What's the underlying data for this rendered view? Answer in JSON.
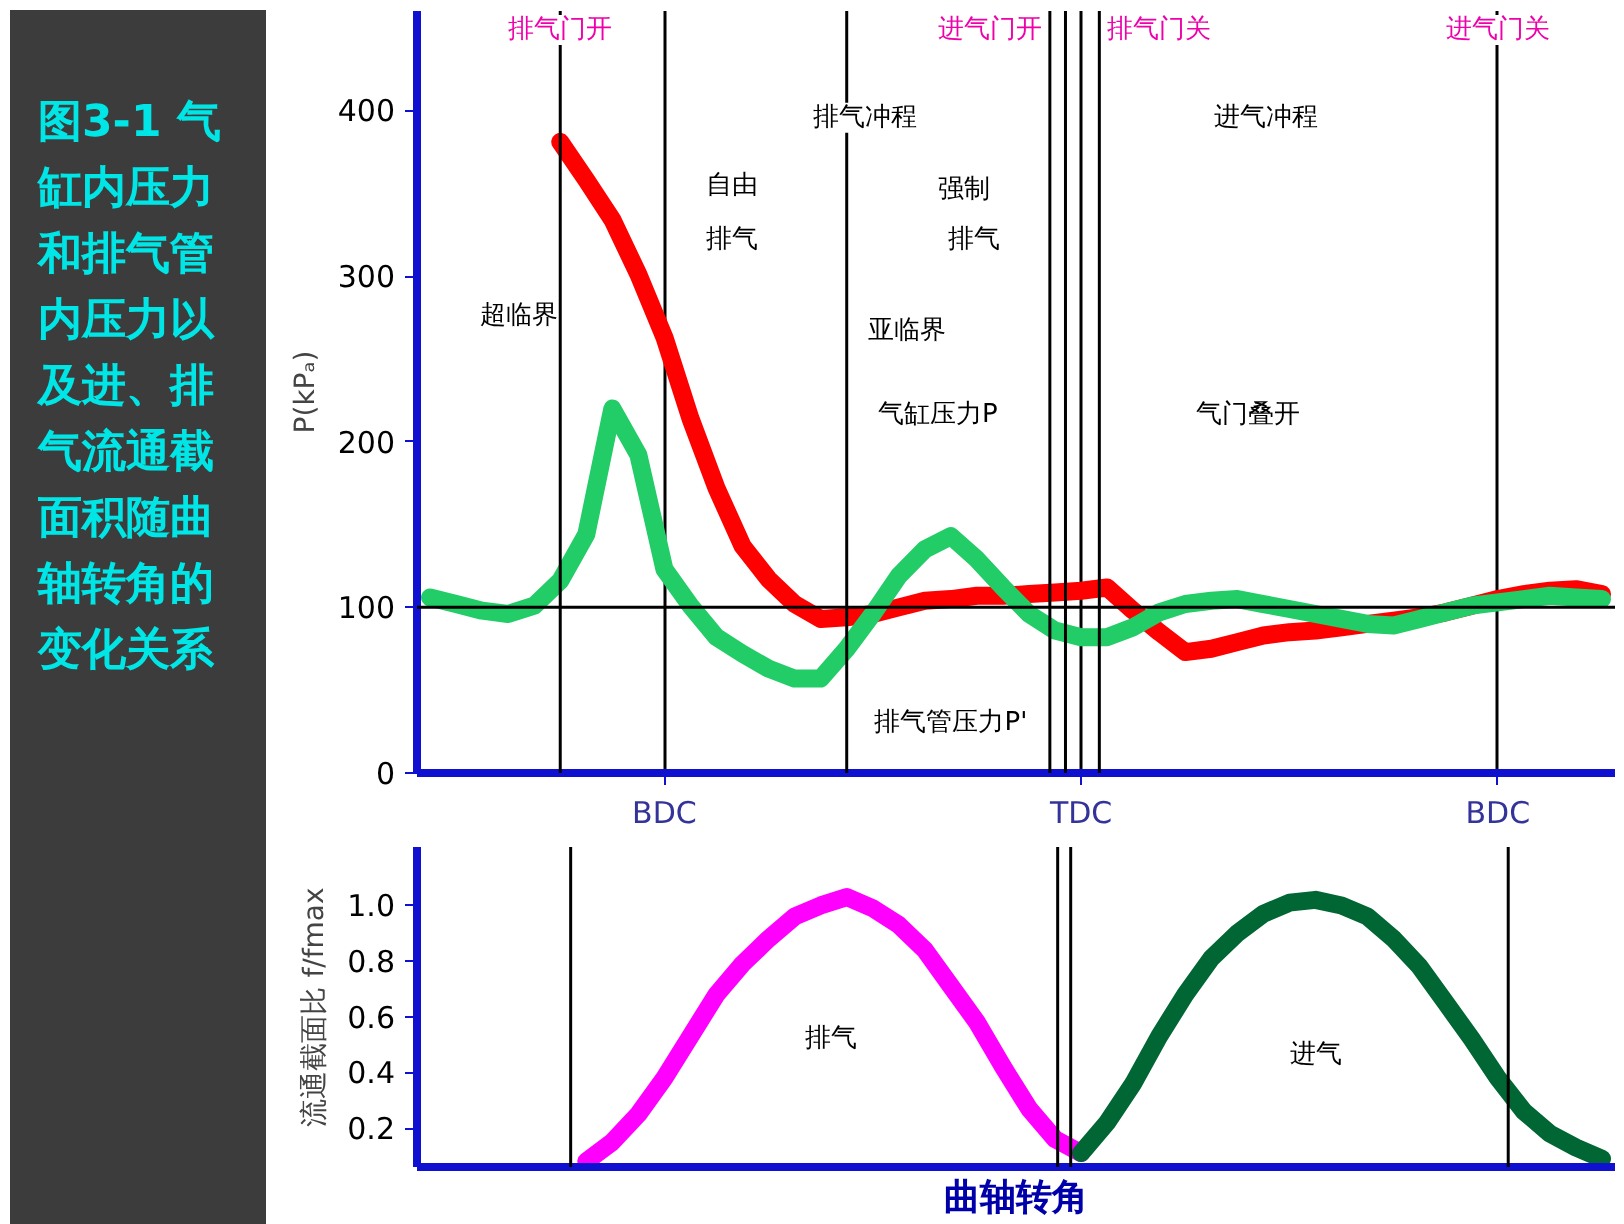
{
  "chart_data": [
    {
      "type": "line",
      "title": "图3-1 气缸内压力和排气管内压力以及进、排气流通截面积随曲轴转角的变化关系",
      "ylabel": "P(kPₐ)",
      "categories": [
        null,
        null,
        null,
        null,
        null,
        null,
        null,
        null,
        null,
        "BDC",
        null,
        null,
        null,
        null,
        null,
        null,
        null,
        null,
        null,
        null,
        null,
        null,
        null,
        null,
        null,
        "TDC",
        null,
        null,
        null,
        null,
        null,
        null,
        null,
        null,
        null,
        null,
        null,
        null,
        null,
        null,
        null,
        "BDC",
        null,
        null,
        null,
        null
      ],
      "ylim": [
        0,
        460
      ],
      "yticks": [
        0,
        100,
        200,
        300,
        400
      ],
      "grid": "x",
      "series": [
        {
          "color": "#ff0000",
          "values": [
            null,
            null,
            null,
            null,
            null,
            381,
            358,
            334,
            301,
            263,
            214,
            172,
            137,
            117,
            102,
            93,
            94,
            96,
            100,
            104,
            105,
            107,
            107,
            108,
            109,
            110,
            112,
            98,
            85,
            73,
            75,
            79,
            83,
            85,
            86,
            88,
            90,
            92,
            94,
            97,
            101,
            105,
            108,
            110,
            111,
            108
          ]
        },
        {
          "color": "#22cc66",
          "values": [
            106,
            102,
            98,
            96,
            101,
            116,
            144,
            220,
            192,
            123,
            101,
            82,
            72,
            63,
            57,
            57,
            75,
            96,
            119,
            135,
            143,
            129,
            112,
            96,
            86,
            82,
            82,
            88,
            97,
            102,
            104,
            105,
            102,
            99,
            96,
            93,
            90,
            89,
            93,
            97,
            101,
            103,
            105,
            107,
            106,
            105
          ]
        }
      ],
      "ref_lines": [
        {
          "axis": "y",
          "value": 100
        }
      ],
      "annotations": [
        "排气冲程",
        "进气冲程",
        "自由",
        "排气",
        "强制",
        "排气",
        "超临界",
        "亚临界",
        "气缸压力P",
        "气门叠开",
        "排气管压力P'",
        "排气门开",
        "进气门开",
        "排气门关",
        "进气门关"
      ]
    },
    {
      "type": "line",
      "xlabel": "曲轴转角",
      "ylabel": "流通截面比 f/fmax",
      "categories": [
        null,
        null,
        null,
        null,
        null,
        null,
        null,
        null,
        null,
        null,
        null,
        null,
        null,
        null,
        null,
        null,
        null,
        null,
        null,
        null,
        null,
        null,
        null,
        null,
        null,
        null,
        null,
        null,
        null,
        null,
        null,
        null,
        null,
        null,
        null,
        null,
        null,
        null,
        null,
        null,
        null,
        null,
        null,
        null,
        null,
        null
      ],
      "ylim": [
        0.06,
        1.21
      ],
      "yticks": [
        0.2,
        0.4,
        0.6,
        0.8,
        {
          "value": 1.0,
          "label": "1.0"
        }
      ],
      "grid": false,
      "tick_labels": "y",
      "series": [
        {
          "color": "#ff00ff",
          "values": [
            null,
            null,
            null,
            null,
            null,
            null,
            0.08,
            0.15,
            0.25,
            0.38,
            0.53,
            0.68,
            0.79,
            0.88,
            0.96,
            1.0,
            1.03,
            0.99,
            0.93,
            0.84,
            0.71,
            0.58,
            0.42,
            0.27,
            0.16,
            0.11,
            null,
            null,
            null,
            null,
            null,
            null,
            null,
            null,
            null,
            null,
            null,
            null,
            null,
            null,
            null,
            null,
            null,
            null,
            null,
            null
          ]
        },
        {
          "color": "#006633",
          "values": [
            null,
            null,
            null,
            null,
            null,
            null,
            null,
            null,
            null,
            null,
            null,
            null,
            null,
            null,
            null,
            null,
            null,
            null,
            null,
            null,
            null,
            null,
            null,
            null,
            null,
            0.11,
            0.22,
            0.36,
            0.53,
            0.68,
            0.81,
            0.9,
            0.97,
            1.01,
            1.02,
            1.0,
            0.96,
            0.88,
            0.78,
            0.65,
            0.52,
            0.38,
            0.26,
            0.18,
            0.13,
            0.09
          ]
        }
      ],
      "annotations": [
        "排气",
        "进气"
      ]
    }
  ]
}
